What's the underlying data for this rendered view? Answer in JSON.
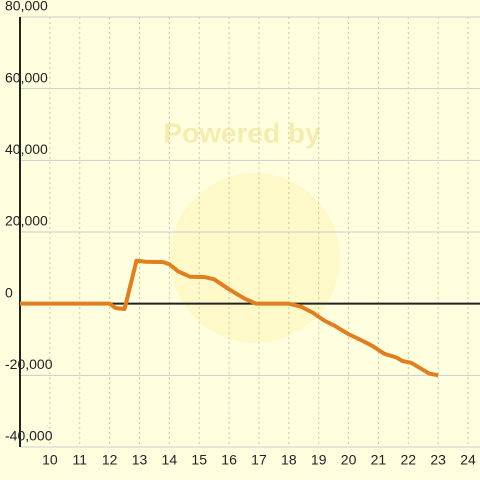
{
  "chart_data": {
    "type": "line",
    "watermark": "Powered by",
    "x": [
      9,
      12,
      12.2,
      12.5,
      12.9,
      13.2,
      13.8,
      14,
      14.3,
      14.7,
      15.2,
      15.5,
      16,
      16.5,
      16.9,
      18,
      18.4,
      18.8,
      19.2,
      19.5,
      20,
      20.5,
      20.8,
      21.2,
      21.6,
      21.8,
      22.1,
      22.4,
      22.7,
      23
    ],
    "series": [
      {
        "color": "#e07f1f",
        "values": [
          0,
          0,
          -1200,
          -1500,
          12000,
          11700,
          11600,
          11000,
          9000,
          7500,
          7400,
          6800,
          4000,
          1500,
          0,
          0,
          -800,
          -2500,
          -4800,
          -6000,
          -8500,
          -10500,
          -11800,
          -14000,
          -15000,
          -16000,
          -16500,
          -18000,
          -19500,
          -20000
        ]
      }
    ],
    "xlim": [
      9,
      24.4
    ],
    "xticks": [
      10,
      11,
      12,
      13,
      14,
      15,
      16,
      17,
      18,
      19,
      20,
      21,
      22,
      23,
      24
    ],
    "ylim": [
      -40000,
      80000
    ],
    "yticks": [
      {
        "value": -40000,
        "label": "-40,000"
      },
      {
        "value": -20000,
        "label": "-20,000"
      },
      0,
      {
        "value": 20000,
        "label": "20,000"
      },
      {
        "value": 40000,
        "label": "40,000"
      },
      {
        "value": 60000,
        "label": "60,000"
      },
      {
        "value": 80000,
        "label": "80,000"
      }
    ],
    "grid": true
  }
}
